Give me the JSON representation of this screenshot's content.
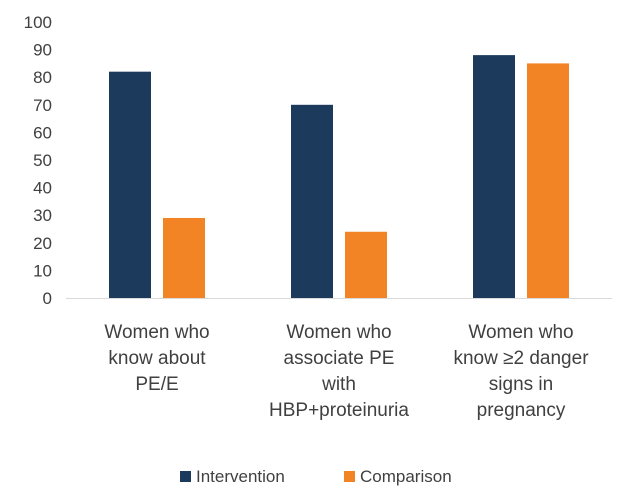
{
  "chart_data": {
    "type": "bar",
    "categories": [
      [
        "Women who",
        "know about",
        "PE/E"
      ],
      [
        "Women who",
        "associate PE",
        "with",
        "HBP+proteinuria"
      ],
      [
        "Women who",
        "know ≥2 danger",
        "signs  in",
        "pregnancy"
      ]
    ],
    "series": [
      {
        "name": "Intervention",
        "color": "#1b3a5c",
        "values": [
          82,
          70,
          88
        ]
      },
      {
        "name": "Comparison",
        "color": "#f28426",
        "values": [
          29,
          24,
          85
        ]
      }
    ],
    "yticks": [
      0,
      10,
      20,
      30,
      40,
      50,
      60,
      70,
      80,
      90,
      100
    ],
    "ylim": [
      0,
      100
    ],
    "grid": false,
    "legend_position": "bottom",
    "title": "",
    "xlabel": "",
    "ylabel": ""
  }
}
